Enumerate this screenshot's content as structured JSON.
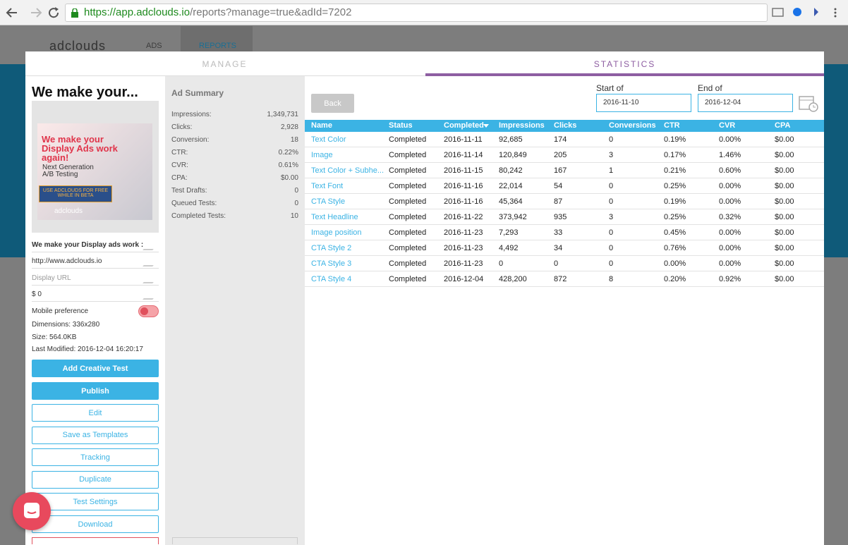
{
  "browser": {
    "url_host": "https://app.adclouds.io",
    "url_path": "/reports?manage=true&adId=7202"
  },
  "app": {
    "logo": "adclouds",
    "nav": [
      "ADS",
      "REPORTS"
    ]
  },
  "tabs": [
    "MANAGE",
    "STATISTICS"
  ],
  "ad_panel": {
    "title": "We make your...",
    "preview": {
      "headline": "We make your Display Ads work again!",
      "subline": "Next Generation A/B Testing",
      "cta": "USE ADCLOUDS FOR FREE WHILE IN BETA",
      "brand": "adclouds"
    },
    "fields": [
      "We make your Display ads work :",
      "http://www.adclouds.io",
      "Display URL",
      "$ 0"
    ],
    "mobile_preference": "Mobile preference",
    "info": [
      "Dimensions: 336x280",
      "Size: 564.0KB",
      "Last Modified: 2016-12-04 16:20:17"
    ],
    "primary_buttons": [
      "Add Creative Test",
      "Publish"
    ],
    "buttons": [
      "Edit",
      "Save as Templates",
      "Tracking",
      "Duplicate",
      "Test Settings",
      "Download"
    ]
  },
  "summary": {
    "title": "Ad Summary",
    "rows": [
      [
        "Impressions:",
        "1,349,731"
      ],
      [
        "Clicks:",
        "2,928"
      ],
      [
        "Conversion:",
        "18"
      ],
      [
        "CTR:",
        "0.22%"
      ],
      [
        "CVR:",
        "0.61%"
      ],
      [
        "CPA:",
        "$0.00"
      ],
      [
        "Test Drafts:",
        "0"
      ],
      [
        "Queued Tests:",
        "0"
      ],
      [
        "Completed Tests:",
        "10"
      ]
    ]
  },
  "filter": {
    "back": "Back",
    "start_label": "Start of",
    "start": "2016-11-10",
    "end_label": "End of",
    "end": "2016-12-04"
  },
  "table": {
    "headers": [
      "Name",
      "Status",
      "Completed",
      "Impressions",
      "Clicks",
      "Conversions",
      "CTR",
      "CVR",
      "CPA"
    ],
    "rows": [
      [
        "Text Color",
        "Completed",
        "2016-11-11",
        "92,685",
        "174",
        "0",
        "0.19%",
        "0.00%",
        "$0.00"
      ],
      [
        "Image",
        "Completed",
        "2016-11-14",
        "120,849",
        "205",
        "3",
        "0.17%",
        "1.46%",
        "$0.00"
      ],
      [
        "Text Color + Subhe...",
        "Completed",
        "2016-11-15",
        "80,242",
        "167",
        "1",
        "0.21%",
        "0.60%",
        "$0.00"
      ],
      [
        "Text Font",
        "Completed",
        "2016-11-16",
        "22,014",
        "54",
        "0",
        "0.25%",
        "0.00%",
        "$0.00"
      ],
      [
        "CTA Style",
        "Completed",
        "2016-11-16",
        "45,364",
        "87",
        "0",
        "0.19%",
        "0.00%",
        "$0.00"
      ],
      [
        "Text Headline",
        "Completed",
        "2016-11-22",
        "373,942",
        "935",
        "3",
        "0.25%",
        "0.32%",
        "$0.00"
      ],
      [
        "Image position",
        "Completed",
        "2016-11-23",
        "7,293",
        "33",
        "0",
        "0.45%",
        "0.00%",
        "$0.00"
      ],
      [
        "CTA Style 2",
        "Completed",
        "2016-11-23",
        "4,492",
        "34",
        "0",
        "0.76%",
        "0.00%",
        "$0.00"
      ],
      [
        "CTA Style 3",
        "Completed",
        "2016-11-23",
        "0",
        "0",
        "0",
        "0.00%",
        "0.00%",
        "$0.00"
      ],
      [
        "CTA Style 4",
        "Completed",
        "2016-12-04",
        "428,200",
        "872",
        "8",
        "0.20%",
        "0.92%",
        "$0.00"
      ]
    ]
  }
}
